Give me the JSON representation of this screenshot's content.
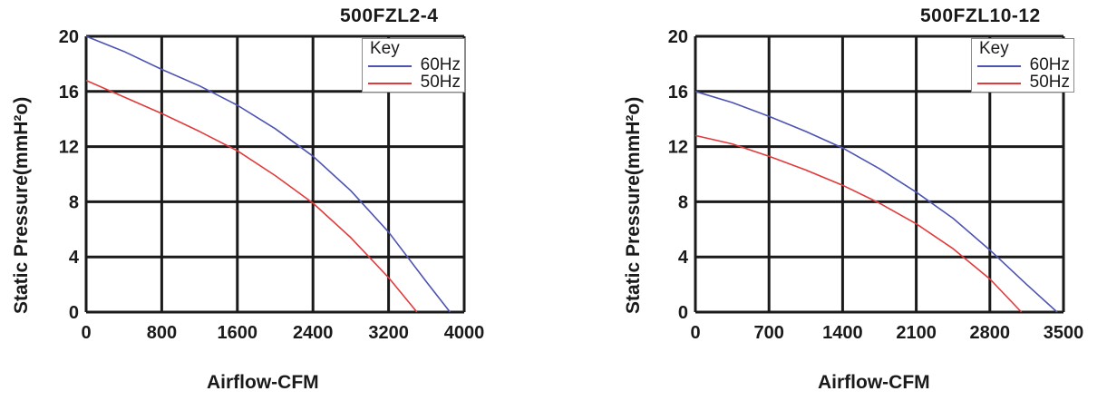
{
  "chart_data": [
    {
      "type": "line",
      "title": "500FZL2-4",
      "xlabel": "Airflow-CFM",
      "ylabel": "Static Pressure(mmH²o)",
      "xlim": [
        0,
        4000
      ],
      "ylim": [
        0,
        20
      ],
      "xticks": [
        "0",
        "800",
        "1600",
        "2400",
        "3200",
        "4000"
      ],
      "yticks": [
        "0",
        "4",
        "8",
        "12",
        "16",
        "20"
      ],
      "grid": true,
      "legend": {
        "title": "Key",
        "placement": "top-right"
      },
      "series": [
        {
          "name": "60Hz",
          "color": "#4d53b3",
          "x": [
            0,
            400,
            800,
            1200,
            1600,
            2000,
            2400,
            2800,
            3200,
            3600,
            3850
          ],
          "y": [
            20,
            18.9,
            17.6,
            16.4,
            15.0,
            13.3,
            11.3,
            8.8,
            5.8,
            2.2,
            0
          ]
        },
        {
          "name": "50Hz",
          "color": "#e23a3a",
          "x": [
            0,
            400,
            800,
            1200,
            1600,
            2000,
            2400,
            2800,
            3200,
            3500
          ],
          "y": [
            16.8,
            15.6,
            14.4,
            13.1,
            11.7,
            9.9,
            7.9,
            5.4,
            2.5,
            0
          ]
        }
      ]
    },
    {
      "type": "line",
      "title": "500FZL10-12",
      "xlabel": "Airflow-CFM",
      "ylabel": "Static Pressure(mmH²o)",
      "xlim": [
        0,
        3500
      ],
      "ylim": [
        0,
        20
      ],
      "xticks": [
        "0",
        "700",
        "1400",
        "2100",
        "2800",
        "3500"
      ],
      "yticks": [
        "0",
        "4",
        "8",
        "12",
        "16",
        "20"
      ],
      "grid": true,
      "legend": {
        "title": "Key",
        "placement": "top-right"
      },
      "series": [
        {
          "name": "60Hz",
          "color": "#4d53b3",
          "x": [
            0,
            350,
            700,
            1050,
            1400,
            1750,
            2100,
            2450,
            2800,
            3150,
            3440
          ],
          "y": [
            16.0,
            15.2,
            14.2,
            13.1,
            11.9,
            10.4,
            8.7,
            6.8,
            4.5,
            2.0,
            0
          ]
        },
        {
          "name": "50Hz",
          "color": "#e23a3a",
          "x": [
            0,
            350,
            700,
            1050,
            1400,
            1750,
            2100,
            2450,
            2800,
            3100
          ],
          "y": [
            12.8,
            12.2,
            11.3,
            10.3,
            9.2,
            7.9,
            6.4,
            4.6,
            2.4,
            0
          ]
        }
      ]
    }
  ]
}
